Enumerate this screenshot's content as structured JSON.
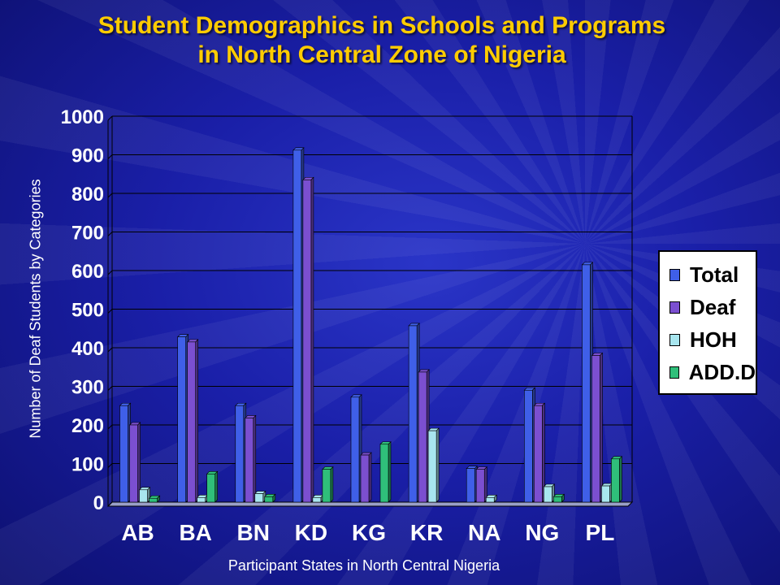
{
  "title": {
    "line1": "Student Demographics in Schools and Programs",
    "line2": "in North Central Zone of Nigeria"
  },
  "chart_data": {
    "type": "bar",
    "xlabel": "Participant States in North Central Nigeria",
    "ylabel": "Number of Deaf Students by Categories",
    "ylim": [
      0,
      1000
    ],
    "yticks": [
      0,
      100,
      200,
      300,
      400,
      500,
      600,
      700,
      800,
      900,
      1000
    ],
    "grid": true,
    "legend_position": "right",
    "categories": [
      "AB",
      "BA",
      "BN",
      "KD",
      "KG",
      "KR",
      "NA",
      "NG",
      "PL"
    ],
    "series": [
      {
        "name": "Total",
        "color": "#3f5fe8",
        "values": [
          250,
          428,
          250,
          912,
          272,
          457,
          87,
          290,
          615
        ]
      },
      {
        "name": "Deaf",
        "color": "#7b4fd0",
        "values": [
          200,
          415,
          218,
          835,
          122,
          337,
          85,
          250,
          380
        ]
      },
      {
        "name": "HOH",
        "color": "#a8e6ef",
        "values": [
          32,
          12,
          22,
          12,
          0,
          185,
          12,
          40,
          42
        ]
      },
      {
        "name": "ADD.D",
        "color": "#2fbf7a",
        "values": [
          10,
          73,
          14,
          85,
          150,
          0,
          0,
          14,
          112
        ]
      }
    ]
  }
}
